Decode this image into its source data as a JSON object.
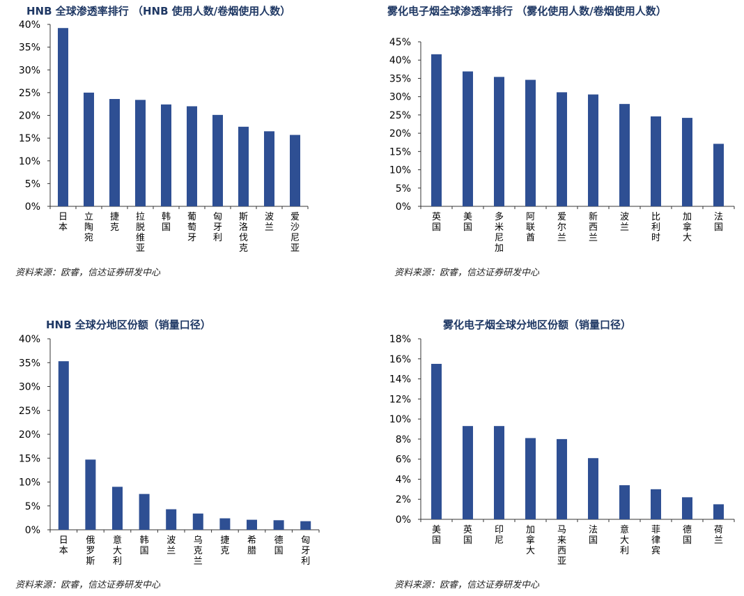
{
  "charts": [
    {
      "title": "HNB 全球渗透率排行 （HNB 使用人数/卷烟使用人数）",
      "source": "资料来源：欧睿，信达证券研发中心",
      "chart_data": {
        "type": "bar",
        "categories": [
          "日本",
          "立陶宛",
          "捷克",
          "拉脱维亚",
          "韩国",
          "葡萄牙",
          "匈牙利",
          "斯洛伐克",
          "波兰",
          "爱沙尼亚"
        ],
        "values": [
          39.2,
          25.0,
          23.6,
          23.4,
          22.4,
          22.0,
          20.1,
          17.5,
          16.5,
          15.7
        ],
        "yticks": [
          "0%",
          "5%",
          "10%",
          "15%",
          "20%",
          "25%",
          "30%",
          "35%",
          "40%"
        ],
        "ylim": [
          0,
          40
        ],
        "color": "#2e4f93",
        "xlabel": "",
        "ylabel": "",
        "grid": false
      }
    },
    {
      "title": "雾化电子烟全球渗透率排行 （雾化使用人数/卷烟使用人数）",
      "source": "资料来源：欧睿，信达证券研发中心",
      "chart_data": {
        "type": "bar",
        "categories": [
          "英国",
          "美国",
          "多米尼加",
          "阿联酋",
          "爱尔兰",
          "新西兰",
          "波兰",
          "比利时",
          "加拿大",
          "法国"
        ],
        "values": [
          41.6,
          36.9,
          35.4,
          34.6,
          31.2,
          30.6,
          28.0,
          24.6,
          24.2,
          17.1
        ],
        "yticks": [
          "0%",
          "5%",
          "10%",
          "15%",
          "20%",
          "25%",
          "30%",
          "35%",
          "40%",
          "45%"
        ],
        "ylim": [
          0,
          45
        ],
        "color": "#2e4f93",
        "xlabel": "",
        "ylabel": "",
        "grid": false
      }
    },
    {
      "title": "HNB 全球分地区份额（销量口径）",
      "source": "资料来源：欧睿，信达证券研发中心",
      "chart_data": {
        "type": "bar",
        "categories": [
          "日本",
          "俄罗斯",
          "意大利",
          "韩国",
          "波兰",
          "乌克兰",
          "捷克",
          "希腊",
          "德国",
          "匈牙利"
        ],
        "values": [
          35.3,
          14.7,
          9.0,
          7.5,
          4.3,
          3.4,
          2.4,
          2.1,
          2.0,
          1.8
        ],
        "yticks": [
          "0%",
          "5%",
          "10%",
          "15%",
          "20%",
          "25%",
          "30%",
          "35%",
          "40%"
        ],
        "ylim": [
          0,
          40
        ],
        "color": "#2e4f93",
        "xlabel": "",
        "ylabel": "",
        "grid": false
      }
    },
    {
      "title": "雾化电子烟全球分地区份额（销量口径）",
      "source": "资料来源：欧睿，信达证券研发中心",
      "chart_data": {
        "type": "bar",
        "categories": [
          "美国",
          "英国",
          "印尼",
          "加拿大",
          "马来西亚",
          "法国",
          "意大利",
          "菲律宾",
          "德国",
          "荷兰"
        ],
        "values": [
          15.5,
          9.3,
          9.3,
          8.1,
          8.0,
          6.1,
          3.4,
          3.0,
          2.2,
          1.5
        ],
        "yticks": [
          "0%",
          "2%",
          "4%",
          "6%",
          "8%",
          "10%",
          "12%",
          "14%",
          "16%",
          "18%"
        ],
        "ylim": [
          0,
          18
        ],
        "color": "#2e4f93",
        "xlabel": "",
        "ylabel": "",
        "grid": false
      }
    }
  ]
}
